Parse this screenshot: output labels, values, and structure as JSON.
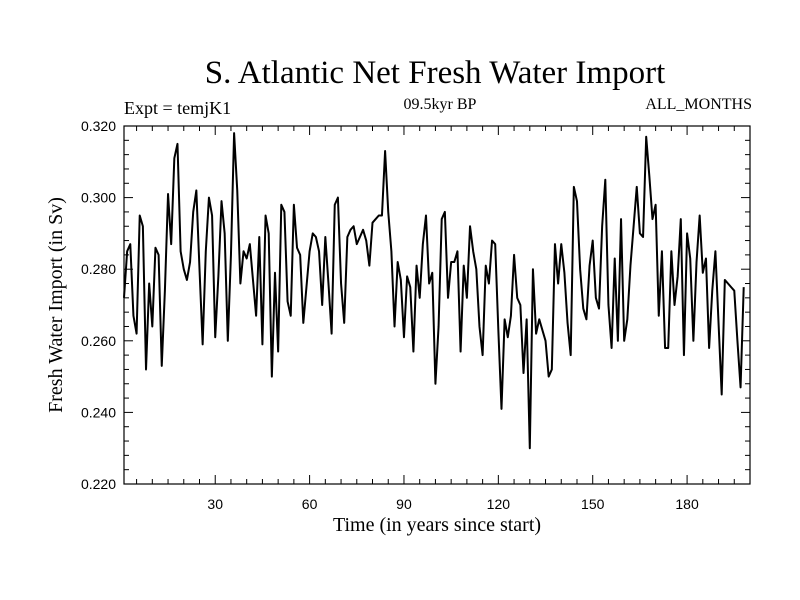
{
  "chart_data": {
    "type": "line",
    "title": "S. Atlantic Net Fresh Water Import",
    "subtitle_left": "Expt = temjK1",
    "subtitle_center": "09.5kyr BP",
    "subtitle_right": "ALL_MONTHS",
    "xlabel": "Time (in years since start)",
    "ylabel": "Fresh Water Import (in Sv)",
    "xlim": [
      1,
      200
    ],
    "ylim": [
      0.22,
      0.32
    ],
    "xticks": [
      30,
      60,
      90,
      120,
      150,
      180
    ],
    "xtick_labels": [
      "30",
      "60",
      "90",
      "120",
      "150",
      "180"
    ],
    "yticks": [
      0.22,
      0.24,
      0.26,
      0.28,
      0.3,
      0.32
    ],
    "ytick_labels": [
      "0.220",
      "0.240",
      "0.260",
      "0.280",
      "0.300",
      "0.320"
    ],
    "series": [
      {
        "name": "Fresh Water Import",
        "values": [
          0.272,
          0.285,
          0.287,
          0.267,
          0.262,
          0.295,
          0.292,
          0.252,
          0.276,
          0.264,
          0.286,
          0.284,
          0.253,
          0.274,
          0.301,
          0.287,
          0.311,
          0.315,
          0.285,
          0.28,
          0.277,
          0.282,
          0.296,
          0.302,
          0.28,
          0.259,
          0.285,
          0.3,
          0.295,
          0.261,
          0.278,
          0.299,
          0.29,
          0.26,
          0.284,
          0.318,
          0.302,
          0.276,
          0.285,
          0.283,
          0.287,
          0.277,
          0.267,
          0.289,
          0.259,
          0.295,
          0.29,
          0.25,
          0.279,
          0.257,
          0.298,
          0.296,
          0.271,
          0.267,
          0.298,
          0.286,
          0.284,
          0.265,
          0.275,
          0.285,
          0.29,
          0.289,
          0.285,
          0.27,
          0.289,
          0.276,
          0.262,
          0.298,
          0.3,
          0.276,
          0.265,
          0.289,
          0.291,
          0.292,
          0.287,
          0.289,
          0.291,
          0.288,
          0.281,
          0.293,
          0.294,
          0.295,
          0.295,
          0.313,
          0.296,
          0.285,
          0.264,
          0.282,
          0.277,
          0.261,
          0.278,
          0.275,
          0.257,
          0.281,
          0.272,
          0.287,
          0.295,
          0.276,
          0.279,
          0.248,
          0.264,
          0.294,
          0.296,
          0.272,
          0.282,
          0.282,
          0.285,
          0.257,
          0.281,
          0.272,
          0.292,
          0.285,
          0.28,
          0.264,
          0.256,
          0.281,
          0.276,
          0.288,
          0.287,
          0.263,
          0.241,
          0.266,
          0.261,
          0.267,
          0.284,
          0.272,
          0.27,
          0.251,
          0.266,
          0.23,
          0.28,
          0.262,
          0.266,
          0.263,
          0.26,
          0.25,
          0.252,
          0.287,
          0.276,
          0.287,
          0.279,
          0.265,
          0.256,
          0.303,
          0.299,
          0.28,
          0.269,
          0.266,
          0.281,
          0.288,
          0.272,
          0.269,
          0.292,
          0.305,
          0.27,
          0.258,
          0.283,
          0.26,
          0.294,
          0.26,
          0.266,
          0.281,
          0.292,
          0.303,
          0.29,
          0.289,
          0.317,
          0.306,
          0.294,
          0.298,
          0.267,
          0.285,
          0.258,
          0.258,
          0.285,
          0.27,
          0.278,
          0.294,
          0.256,
          0.29,
          0.283,
          0.26,
          0.282,
          0.295,
          0.279,
          0.283,
          0.258,
          0.274,
          0.285,
          0.265,
          0.245,
          0.277,
          0.276,
          0.275,
          0.274,
          0.26,
          0.247,
          0.275
        ]
      }
    ]
  }
}
